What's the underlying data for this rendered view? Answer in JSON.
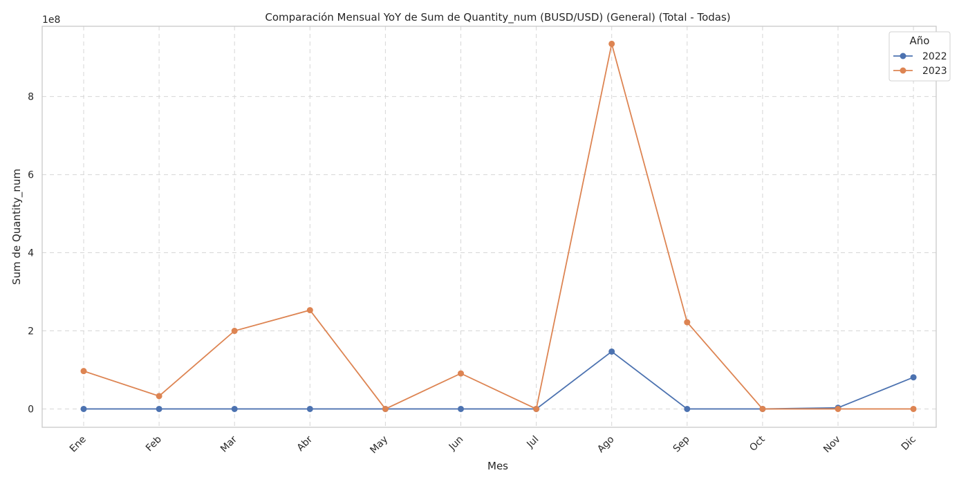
{
  "chart_data": {
    "type": "line",
    "title": "Comparación Mensual YoY de Sum de Quantity_num (BUSD/USD) (General) (Total - Todas)",
    "xlabel": "Mes",
    "ylabel": "Sum de Quantity_num",
    "offset_label": "1e8",
    "categories": [
      "Ene",
      "Feb",
      "Mar",
      "Abr",
      "May",
      "Jun",
      "Jul",
      "Ago",
      "Sep",
      "Oct",
      "Nov",
      "Dic"
    ],
    "yticks": [
      0,
      2,
      4,
      6,
      8
    ],
    "ylim": [
      -0.47,
      9.8
    ],
    "grid": true,
    "legend": {
      "title": "Año",
      "placement": "top-right"
    },
    "series": [
      {
        "name": "2022",
        "color": "#4c72b0",
        "values": [
          0.0,
          0.0,
          0.0,
          0.0,
          0.0,
          0.0,
          0.0,
          1.47,
          0.0,
          0.0,
          0.03,
          0.81
        ]
      },
      {
        "name": "2023",
        "color": "#dd8452",
        "values": [
          0.97,
          0.33,
          2.0,
          2.53,
          0.0,
          0.91,
          0.0,
          9.35,
          2.22,
          0.0,
          0.0,
          0.0
        ]
      }
    ]
  }
}
